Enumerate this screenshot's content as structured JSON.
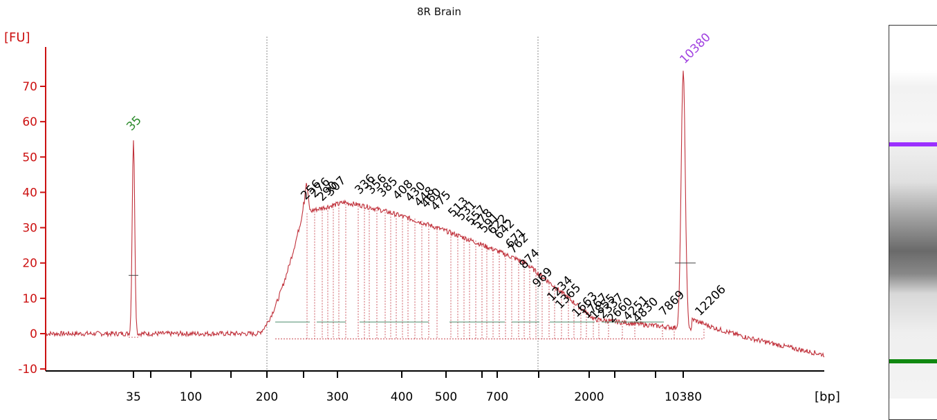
{
  "chart_data": {
    "type": "line",
    "title": "8R Brain",
    "ylabel": "[FU]",
    "xlabel": "[bp]",
    "ylim": [
      -11,
      84
    ],
    "yticks": [
      -10,
      0,
      10,
      20,
      30,
      40,
      50,
      60,
      70
    ],
    "xticks": [
      "35",
      "100",
      "200",
      "300",
      "400",
      "500",
      "700",
      "2000",
      "10380"
    ],
    "marker_lower": {
      "bp": 35,
      "peak_fu": 55
    },
    "marker_upper": {
      "bp": 10380,
      "peak_fu": 75.5
    },
    "region_bounds_bp": [
      200,
      1000
    ],
    "peak_labels": [
      "256",
      "276",
      "290",
      "307",
      "336",
      "356",
      "385",
      "408",
      "430",
      "448",
      "460",
      "475",
      "513",
      "531",
      "557",
      "578",
      "591",
      "622",
      "642",
      "671",
      "762",
      "874",
      "969",
      "1234",
      "1365",
      "1663",
      "1767",
      "1855",
      "2337",
      "2660",
      "4251",
      "4830",
      "7869",
      "12206"
    ],
    "series": [
      {
        "color": "#c0303a"
      }
    ],
    "colors": {
      "axis": "#cc1111",
      "trace": "#c0303a",
      "lower_marker": "#2a8a2a",
      "upper_marker": "#a040e0",
      "baseline": "#4a8a6a"
    },
    "gel": {
      "upper_band_color": "#9b30ff",
      "lower_band_color": "#118811"
    }
  }
}
